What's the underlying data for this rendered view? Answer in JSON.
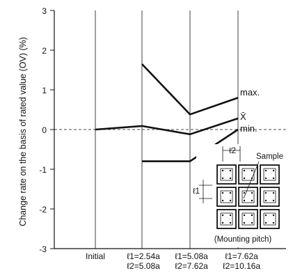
{
  "chart_data": {
    "type": "line",
    "ylabel": "Change rate on the basis of rated value (OV) (%)",
    "ylim": [
      -3,
      3
    ],
    "yticks": [
      "3",
      "2",
      "1",
      "0",
      "-1",
      "-2",
      "-3"
    ],
    "categories": [
      {
        "line1": "Initial",
        "line2": ""
      },
      {
        "line1": "ℓ1=2.54a",
        "line2": "ℓ2=5.08a"
      },
      {
        "line1": "ℓ1=5.08a",
        "line2": "ℓ2=7.62a"
      },
      {
        "line1": "ℓ1=7.62a",
        "line2": "ℓ2=10.16a"
      }
    ],
    "series": [
      {
        "name": "max.",
        "values": [
          null,
          1.65,
          0.38,
          0.8
        ]
      },
      {
        "name": "X̄",
        "values": [
          0,
          0.09,
          -0.12,
          0.28
        ]
      },
      {
        "name": "min.",
        "values": [
          null,
          -0.8,
          -0.8,
          0
        ]
      }
    ],
    "grid": "vertical",
    "inset": {
      "l1_label": "ℓ1",
      "l2_label": "ℓ2",
      "sample_label": "Sample",
      "caption": "(Mounting pitch)"
    }
  }
}
